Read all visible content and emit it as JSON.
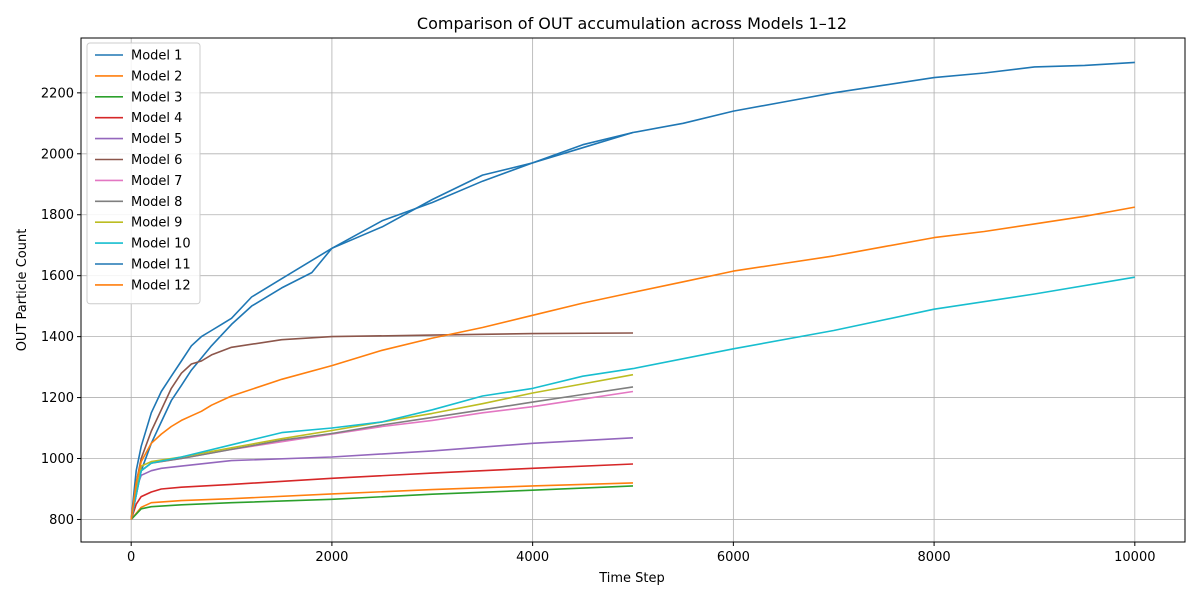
{
  "chart_data": {
    "type": "line",
    "title": "Comparison of OUT accumulation across Models 1–12",
    "xlabel": "Time Step",
    "ylabel": "OUT Particle Count",
    "xlim": [
      -500,
      10500
    ],
    "ylim": [
      726,
      2380
    ],
    "xticks": [
      0,
      2000,
      4000,
      6000,
      8000,
      10000
    ],
    "yticks": [
      800,
      1000,
      1200,
      1400,
      1600,
      1800,
      2000,
      2200
    ],
    "grid": true,
    "legend_position": "upper-left",
    "series": [
      {
        "name": "Model 1",
        "color": "#1f77b4",
        "x": [
          0,
          50,
          100,
          200,
          300,
          400,
          500,
          600,
          700,
          800,
          1000,
          1200,
          1500,
          1800,
          2000,
          2500,
          3000,
          3500,
          4000,
          4500,
          5000
        ],
        "y": [
          800,
          900,
          960,
          1050,
          1120,
          1190,
          1240,
          1290,
          1330,
          1370,
          1440,
          1500,
          1560,
          1610,
          1690,
          1760,
          1850,
          1930,
          1970,
          2030,
          2070
        ]
      },
      {
        "name": "Model 2",
        "color": "#ff7f0e",
        "x": [
          0,
          100,
          200,
          500,
          1000,
          2000,
          3000,
          4000,
          5000
        ],
        "y": [
          800,
          840,
          855,
          862,
          868,
          884,
          898,
          910,
          920
        ]
      },
      {
        "name": "Model 3",
        "color": "#2ca02c",
        "x": [
          0,
          100,
          200,
          500,
          1000,
          2000,
          3000,
          4000,
          5000
        ],
        "y": [
          800,
          835,
          842,
          848,
          855,
          866,
          883,
          896,
          910
        ]
      },
      {
        "name": "Model 4",
        "color": "#d62728",
        "x": [
          0,
          50,
          100,
          200,
          300,
          500,
          1000,
          2000,
          3000,
          4000,
          5000
        ],
        "y": [
          800,
          850,
          875,
          890,
          900,
          906,
          915,
          935,
          952,
          968,
          982
        ]
      },
      {
        "name": "Model 5",
        "color": "#9467bd",
        "x": [
          0,
          50,
          100,
          200,
          300,
          500,
          1000,
          2000,
          3000,
          4000,
          5000
        ],
        "y": [
          800,
          900,
          945,
          960,
          968,
          975,
          993,
          1005,
          1025,
          1050,
          1068
        ]
      },
      {
        "name": "Model 6",
        "color": "#8c564b",
        "x": [
          0,
          50,
          100,
          200,
          300,
          400,
          500,
          600,
          700,
          800,
          1000,
          1500,
          2000,
          3000,
          4000,
          5000
        ],
        "y": [
          800,
          920,
          1000,
          1090,
          1160,
          1230,
          1280,
          1310,
          1320,
          1340,
          1365,
          1390,
          1400,
          1405,
          1410,
          1412
        ]
      },
      {
        "name": "Model 7",
        "color": "#e377c2",
        "x": [
          0,
          100,
          200,
          500,
          1000,
          1500,
          2000,
          2500,
          3000,
          3500,
          4000,
          4500,
          5000
        ],
        "y": [
          800,
          960,
          985,
          1000,
          1030,
          1055,
          1080,
          1105,
          1125,
          1150,
          1170,
          1195,
          1220
        ]
      },
      {
        "name": "Model 8",
        "color": "#7f7f7f",
        "x": [
          0,
          100,
          200,
          500,
          1000,
          1500,
          2000,
          2500,
          3000,
          3500,
          4000,
          4500,
          5000
        ],
        "y": [
          800,
          960,
          985,
          1000,
          1030,
          1060,
          1082,
          1110,
          1135,
          1160,
          1185,
          1210,
          1235
        ]
      },
      {
        "name": "Model 9",
        "color": "#bcbd22",
        "x": [
          0,
          100,
          200,
          500,
          1000,
          1500,
          2000,
          2500,
          3000,
          3500,
          4000,
          4500,
          5000
        ],
        "y": [
          800,
          975,
          990,
          1005,
          1035,
          1065,
          1092,
          1120,
          1148,
          1180,
          1215,
          1245,
          1275
        ]
      },
      {
        "name": "Model 10",
        "color": "#17becf",
        "x": [
          0,
          100,
          200,
          500,
          1000,
          1500,
          2000,
          2500,
          3000,
          3500,
          4000,
          4500,
          5000,
          6000,
          7000,
          8000,
          9000,
          10000
        ],
        "y": [
          800,
          960,
          985,
          1005,
          1045,
          1085,
          1100,
          1120,
          1160,
          1205,
          1230,
          1270,
          1295,
          1360,
          1420,
          1490,
          1540,
          1595
        ]
      },
      {
        "name": "Model 11",
        "color": "#1f77b4",
        "x": [
          0,
          50,
          100,
          200,
          300,
          400,
          500,
          600,
          700,
          800,
          900,
          1000,
          1200,
          1500,
          2000,
          2500,
          3000,
          3500,
          4000,
          4500,
          5000,
          5500,
          6000,
          6500,
          7000,
          7500,
          8000,
          8500,
          9000,
          9500,
          10000
        ],
        "y": [
          800,
          960,
          1040,
          1150,
          1220,
          1270,
          1320,
          1370,
          1400,
          1420,
          1440,
          1460,
          1530,
          1590,
          1690,
          1780,
          1840,
          1910,
          1970,
          2020,
          2070,
          2100,
          2140,
          2170,
          2200,
          2225,
          2250,
          2265,
          2285,
          2290,
          2300
        ]
      },
      {
        "name": "Model 12",
        "color": "#ff7f0e",
        "x": [
          0,
          50,
          100,
          200,
          300,
          400,
          500,
          600,
          700,
          800,
          1000,
          1500,
          2000,
          2500,
          3000,
          3500,
          4000,
          4500,
          5000,
          5500,
          6000,
          6500,
          7000,
          7500,
          8000,
          8500,
          9000,
          9500,
          10000
        ],
        "y": [
          800,
          920,
          990,
          1050,
          1080,
          1105,
          1125,
          1140,
          1155,
          1175,
          1205,
          1260,
          1305,
          1355,
          1395,
          1430,
          1470,
          1510,
          1545,
          1580,
          1615,
          1640,
          1665,
          1695,
          1725,
          1745,
          1770,
          1795,
          1825
        ]
      }
    ]
  }
}
